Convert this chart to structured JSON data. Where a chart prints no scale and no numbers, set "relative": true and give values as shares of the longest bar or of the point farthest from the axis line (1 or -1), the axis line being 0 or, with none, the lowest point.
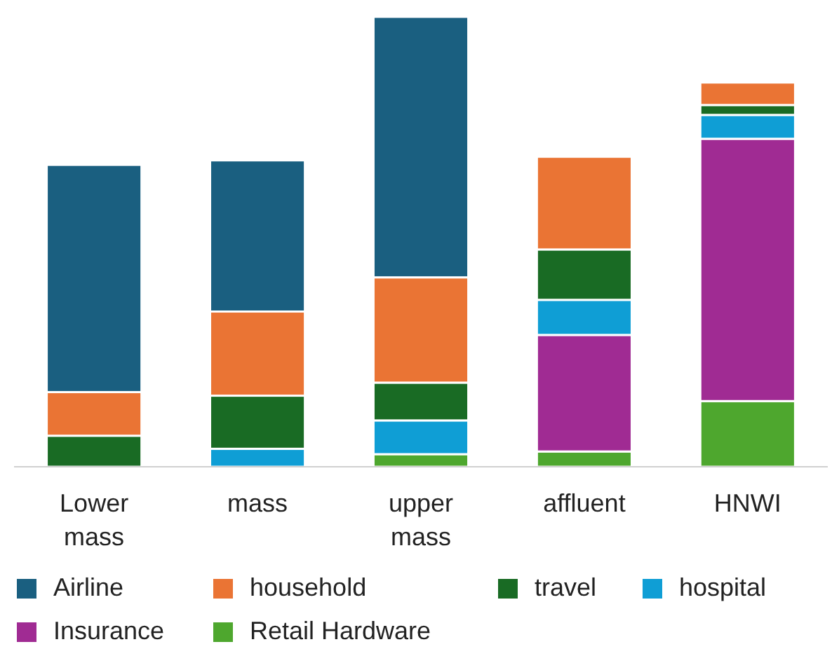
{
  "chart_data": {
    "type": "bar",
    "stacked": true,
    "relative": true,
    "legend": "bottom",
    "categories": [
      "Lower mass",
      "mass",
      "upper mass",
      "affluent",
      "HNWI"
    ],
    "series": [
      {
        "name": "Retail Hardware",
        "color": "#4ea72e",
        "values": [
          null,
          null,
          0.028,
          0.034,
          0.146
        ]
      },
      {
        "name": "Insurance",
        "color": "#a02b93",
        "values": [
          null,
          null,
          null,
          0.259,
          0.583
        ]
      },
      {
        "name": "hospital",
        "color": "#0f9ed5",
        "values": [
          null,
          0.04,
          0.075,
          0.078,
          0.053
        ]
      },
      {
        "name": "travel",
        "color": "#196b24",
        "values": [
          0.069,
          0.118,
          0.084,
          0.112,
          0.022
        ]
      },
      {
        "name": "household",
        "color": "#ea7434",
        "values": [
          0.097,
          0.187,
          0.234,
          0.206,
          0.05
        ]
      },
      {
        "name": "Airline",
        "color": "#1a5f80",
        "values": [
          0.505,
          0.336,
          0.579,
          null,
          null
        ]
      }
    ]
  }
}
